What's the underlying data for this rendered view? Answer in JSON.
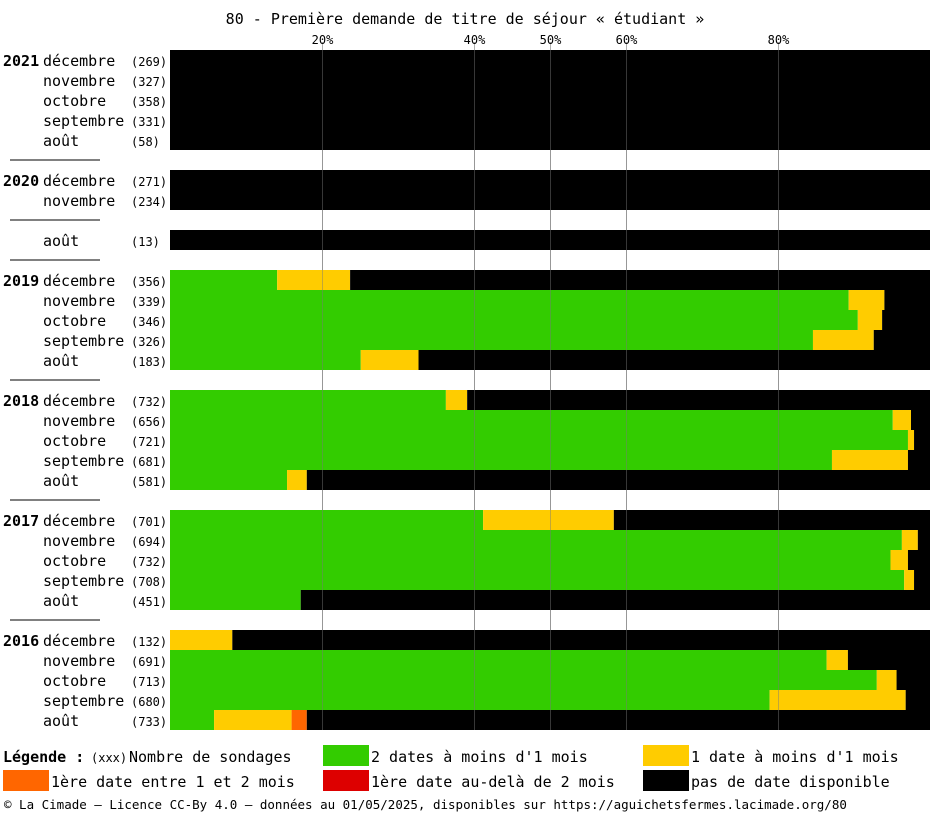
{
  "chart_data": {
    "type": "bar",
    "orientation": "horizontal",
    "stacked": true,
    "normalized": true,
    "title": "80 - Première demande de titre de séjour « étudiant »",
    "xticks": [
      {
        "value": 20,
        "label": "20%"
      },
      {
        "value": 40,
        "label": "40%"
      },
      {
        "value": 50,
        "label": "50%"
      },
      {
        "value": 60,
        "label": "60%"
      },
      {
        "value": 80,
        "label": "80%"
      }
    ],
    "xlim": [
      0,
      100
    ],
    "grid": true,
    "series": [
      {
        "key": "green",
        "name": "2 dates à moins d'1 mois",
        "color": "#33cc00"
      },
      {
        "key": "yellow",
        "name": "1 date à moins d'1 mois",
        "color": "#ffcc00"
      },
      {
        "key": "orange",
        "name": "1ère date entre 1 et 2 mois",
        "color": "#ff6600"
      },
      {
        "key": "red",
        "name": "1ère date au-delà de 2 mois",
        "color": "#dd0000"
      },
      {
        "key": "black",
        "name": "pas de date disponible",
        "color": "#000000"
      }
    ],
    "groups": [
      {
        "year": "2021",
        "rows": [
          {
            "month": "décembre",
            "count": "(269)",
            "values": [
              0,
              0,
              0,
              0,
              100
            ]
          },
          {
            "month": "novembre",
            "count": "(327)",
            "values": [
              0,
              0,
              0,
              0,
              100
            ]
          },
          {
            "month": "octobre",
            "count": "(358)",
            "values": [
              0,
              0,
              0,
              0,
              100
            ]
          },
          {
            "month": "septembre",
            "count": "(331)",
            "values": [
              0,
              0,
              0,
              0,
              100
            ]
          },
          {
            "month": "août",
            "count": "(58)",
            "values": [
              0,
              0,
              0,
              0,
              100
            ]
          }
        ]
      },
      {
        "year": "2020",
        "rows": [
          {
            "month": "décembre",
            "count": "(271)",
            "values": [
              0,
              0,
              0,
              0,
              100
            ]
          },
          {
            "month": "novembre",
            "count": "(234)",
            "values": [
              0,
              0,
              0,
              0,
              100
            ]
          },
          {
            "gap": true
          },
          {
            "month": "août",
            "count": "(13)",
            "values": [
              0,
              0,
              0,
              0,
              100
            ]
          }
        ]
      },
      {
        "year": "2019",
        "rows": [
          {
            "month": "décembre",
            "count": "(356)",
            "values": [
              14.1,
              9.6,
              0,
              0,
              76.3
            ]
          },
          {
            "month": "novembre",
            "count": "(339)",
            "values": [
              89.3,
              4.7,
              0,
              0,
              6.0
            ]
          },
          {
            "month": "octobre",
            "count": "(346)",
            "values": [
              90.5,
              3.2,
              0,
              0,
              6.3
            ]
          },
          {
            "month": "septembre",
            "count": "(326)",
            "values": [
              84.6,
              8.0,
              0,
              0,
              7.4
            ]
          },
          {
            "month": "août",
            "count": "(183)",
            "values": [
              25.1,
              7.6,
              0,
              0,
              67.3
            ]
          }
        ]
      },
      {
        "year": "2018",
        "rows": [
          {
            "month": "décembre",
            "count": "(732)",
            "values": [
              36.3,
              2.8,
              0,
              0,
              60.9
            ]
          },
          {
            "month": "novembre",
            "count": "(656)",
            "values": [
              95.1,
              2.4,
              0,
              0,
              2.5
            ]
          },
          {
            "month": "octobre",
            "count": "(721)",
            "values": [
              97.1,
              0.8,
              0,
              0,
              2.1
            ]
          },
          {
            "month": "septembre",
            "count": "(681)",
            "values": [
              87.1,
              10.0,
              0,
              0,
              2.9
            ]
          },
          {
            "month": "août",
            "count": "(581)",
            "values": [
              15.4,
              2.6,
              0,
              0,
              82.0
            ]
          }
        ]
      },
      {
        "year": "2017",
        "rows": [
          {
            "month": "décembre",
            "count": "(701)",
            "values": [
              41.2,
              17.2,
              0,
              0,
              41.6
            ]
          },
          {
            "month": "novembre",
            "count": "(694)",
            "values": [
              96.3,
              2.1,
              0,
              0,
              1.6
            ]
          },
          {
            "month": "octobre",
            "count": "(732)",
            "values": [
              94.8,
              2.3,
              0,
              0,
              2.9
            ]
          },
          {
            "month": "septembre",
            "count": "(708)",
            "values": [
              96.6,
              1.3,
              0,
              0,
              2.1
            ]
          },
          {
            "month": "août",
            "count": "(451)",
            "values": [
              17.2,
              0,
              0,
              0,
              82.8
            ]
          }
        ]
      },
      {
        "year": "2016",
        "rows": [
          {
            "month": "décembre",
            "count": "(132)",
            "values": [
              0,
              8.2,
              0,
              0,
              91.8
            ]
          },
          {
            "month": "novembre",
            "count": "(691)",
            "values": [
              86.4,
              2.8,
              0,
              0,
              10.8
            ]
          },
          {
            "month": "octobre",
            "count": "(713)",
            "values": [
              93.0,
              2.6,
              0,
              0,
              4.4
            ]
          },
          {
            "month": "septembre",
            "count": "(680)",
            "values": [
              78.9,
              17.9,
              0,
              0,
              3.2
            ]
          },
          {
            "month": "août",
            "count": "(733)",
            "values": [
              5.8,
              10.2,
              2.0,
              0,
              82.0
            ]
          }
        ]
      }
    ],
    "legend": {
      "heading": "Légende :",
      "count_code": "(xxx)",
      "count_label": "Nombre de sondages"
    }
  },
  "footer": "© La Cimade — Licence CC-By 4.0 — données au 01/05/2025, disponibles sur https://aguichetsfermes.lacimade.org/80"
}
